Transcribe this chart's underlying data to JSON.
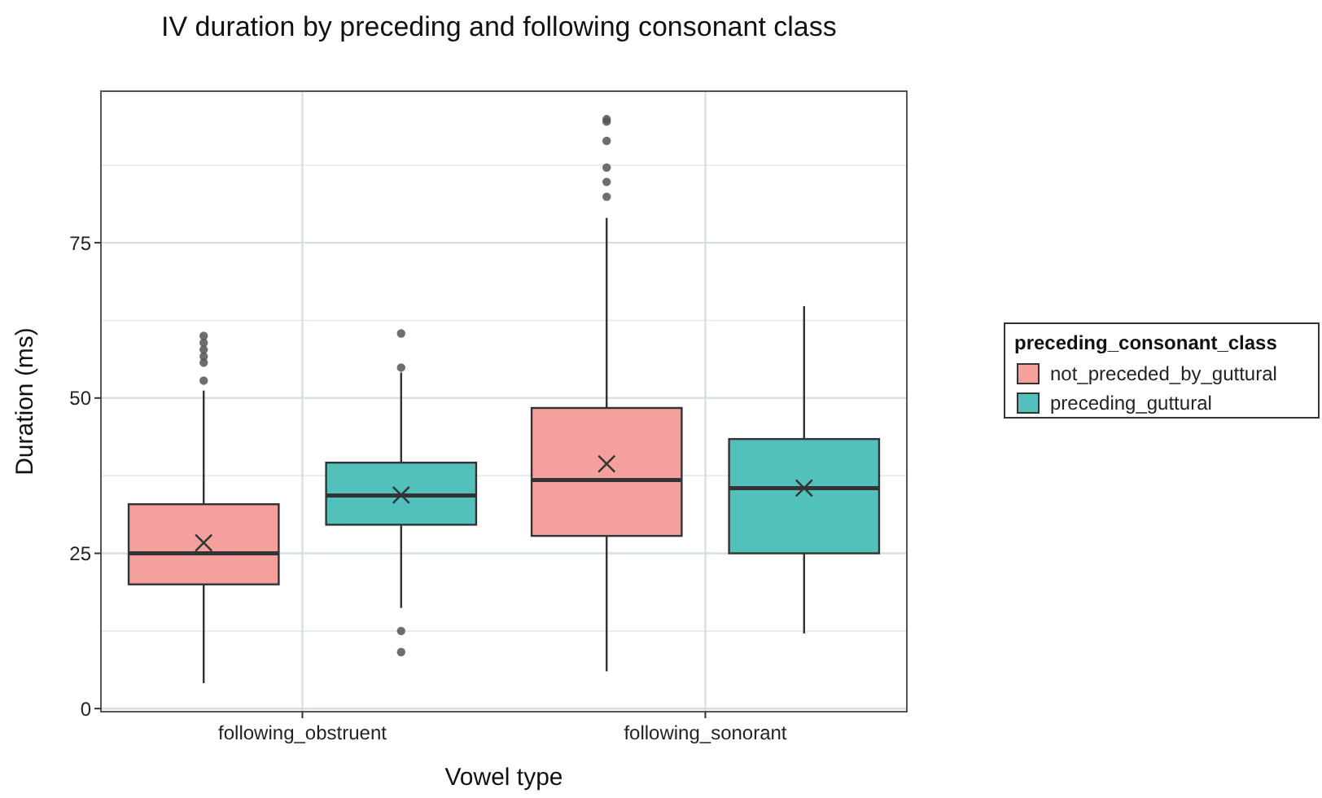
{
  "chart_data": {
    "type": "box",
    "title": "IV duration by preceding and following consonant class",
    "xlabel": "Vowel type",
    "ylabel": "Duration (ms)",
    "legend_title": "preceding_consonant_class",
    "categories": [
      "following_obstruent",
      "following_sonorant"
    ],
    "series": [
      {
        "name": "not_preceded_by_guttural",
        "color": "#f4a09c",
        "boxes": [
          {
            "low": 4.1,
            "q1": 20,
            "median": 25,
            "q3": 32.9,
            "high": 51.2,
            "mean": 26.7,
            "outliers": [
              52.8,
              55.7,
              56.7,
              57.8,
              58.9,
              60
            ]
          },
          {
            "low": 6,
            "q1": 27.8,
            "median": 36.8,
            "q3": 48.4,
            "high": 79,
            "mean": 39.4,
            "outliers": [
              82.4,
              84.8,
              87.1,
              91.4,
              94.5,
              94.9
            ]
          }
        ]
      },
      {
        "name": "preceding_guttural",
        "color": "#52c1bc",
        "boxes": [
          {
            "low": 16.2,
            "q1": 29.6,
            "median": 34.3,
            "q3": 39.6,
            "high": 54.1,
            "mean": 34.4,
            "outliers": [
              9.1,
              12.5,
              54.9,
              60.4
            ]
          },
          {
            "low": 12.1,
            "q1": 25,
            "median": 35.5,
            "q3": 43.4,
            "high": 64.8,
            "mean": 35.5
          }
        ]
      }
    ],
    "ylim": [
      -0.5,
      99.4
    ],
    "yticks": [
      0,
      25,
      50,
      75
    ],
    "grid": true,
    "legend": "right"
  }
}
